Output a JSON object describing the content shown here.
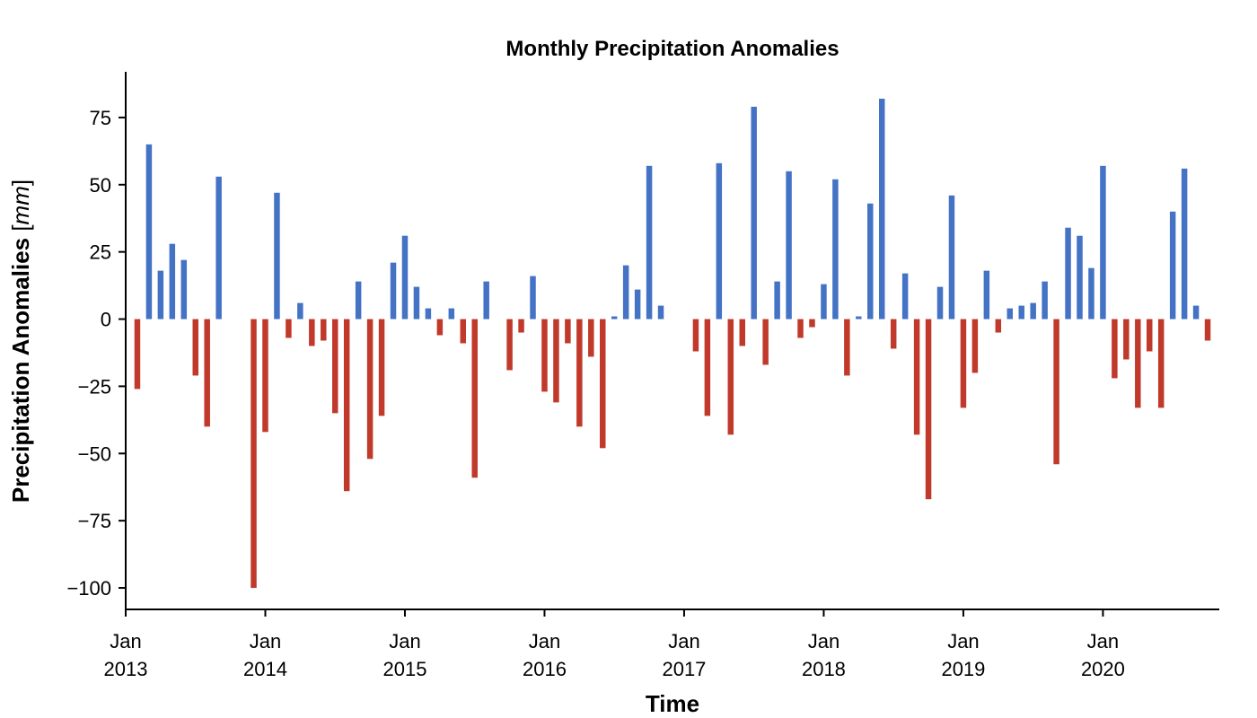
{
  "chart_data": {
    "type": "bar",
    "title": "Monthly Precipitation Anomalies",
    "xlabel": "Time",
    "ylabel": "Precipitation Anomalies [mm]",
    "ylabel_parts": {
      "text": "Precipitation Anomalies ",
      "open": "[",
      "unit": "mm",
      "close": "]"
    },
    "ylim": [
      -108,
      92
    ],
    "yticks": [
      75,
      50,
      25,
      0,
      -25,
      -50,
      -75,
      -100
    ],
    "ytick_labels": [
      "75",
      "50",
      "25",
      "0",
      "−25",
      "−50",
      "−75",
      "−100"
    ],
    "xticks": [
      {
        "date": "2013-01",
        "line1": "Jan",
        "line2": "2013"
      },
      {
        "date": "2014-01",
        "line1": "Jan",
        "line2": "2014"
      },
      {
        "date": "2015-01",
        "line1": "Jan",
        "line2": "2015"
      },
      {
        "date": "2016-01",
        "line1": "Jan",
        "line2": "2016"
      },
      {
        "date": "2017-01",
        "line1": "Jan",
        "line2": "2017"
      },
      {
        "date": "2018-01",
        "line1": "Jan",
        "line2": "2018"
      },
      {
        "date": "2019-01",
        "line1": "Jan",
        "line2": "2019"
      },
      {
        "date": "2020-01",
        "line1": "Jan",
        "line2": "2020"
      }
    ],
    "xlim": [
      "2013-01",
      "2020-11"
    ],
    "grid": false,
    "colors": {
      "positive": "#4472c4",
      "negative": "#c0392b"
    },
    "data": [
      {
        "x": "2013-02",
        "y": -26
      },
      {
        "x": "2013-03",
        "y": 65
      },
      {
        "x": "2013-04",
        "y": 18
      },
      {
        "x": "2013-05",
        "y": 28
      },
      {
        "x": "2013-06",
        "y": 22
      },
      {
        "x": "2013-07",
        "y": -21
      },
      {
        "x": "2013-08",
        "y": -40
      },
      {
        "x": "2013-09",
        "y": 53
      },
      {
        "x": "2013-12",
        "y": -100
      },
      {
        "x": "2014-01",
        "y": -42
      },
      {
        "x": "2014-02",
        "y": 47
      },
      {
        "x": "2014-03",
        "y": -7
      },
      {
        "x": "2014-04",
        "y": 6
      },
      {
        "x": "2014-05",
        "y": -10
      },
      {
        "x": "2014-06",
        "y": -8
      },
      {
        "x": "2014-07",
        "y": -35
      },
      {
        "x": "2014-08",
        "y": -64
      },
      {
        "x": "2014-09",
        "y": 14
      },
      {
        "x": "2014-10",
        "y": -52
      },
      {
        "x": "2014-11",
        "y": -36
      },
      {
        "x": "2014-12",
        "y": 21
      },
      {
        "x": "2015-01",
        "y": 31
      },
      {
        "x": "2015-02",
        "y": 12
      },
      {
        "x": "2015-03",
        "y": 4
      },
      {
        "x": "2015-04",
        "y": -6
      },
      {
        "x": "2015-05",
        "y": 4
      },
      {
        "x": "2015-06",
        "y": -9
      },
      {
        "x": "2015-07",
        "y": -59
      },
      {
        "x": "2015-08",
        "y": 14
      },
      {
        "x": "2015-10",
        "y": -19
      },
      {
        "x": "2015-11",
        "y": -5
      },
      {
        "x": "2015-12",
        "y": 16
      },
      {
        "x": "2016-01",
        "y": -27
      },
      {
        "x": "2016-02",
        "y": -31
      },
      {
        "x": "2016-03",
        "y": -9
      },
      {
        "x": "2016-04",
        "y": -40
      },
      {
        "x": "2016-05",
        "y": -14
      },
      {
        "x": "2016-06",
        "y": -48
      },
      {
        "x": "2016-07",
        "y": 1
      },
      {
        "x": "2016-08",
        "y": 20
      },
      {
        "x": "2016-09",
        "y": 11
      },
      {
        "x": "2016-10",
        "y": 57
      },
      {
        "x": "2016-11",
        "y": 5
      },
      {
        "x": "2017-02",
        "y": -12
      },
      {
        "x": "2017-03",
        "y": -36
      },
      {
        "x": "2017-04",
        "y": 58
      },
      {
        "x": "2017-05",
        "y": -43
      },
      {
        "x": "2017-06",
        "y": -10
      },
      {
        "x": "2017-07",
        "y": 79
      },
      {
        "x": "2017-08",
        "y": -17
      },
      {
        "x": "2017-09",
        "y": 14
      },
      {
        "x": "2017-10",
        "y": 55
      },
      {
        "x": "2017-11",
        "y": -7
      },
      {
        "x": "2017-12",
        "y": -3
      },
      {
        "x": "2018-01",
        "y": 13
      },
      {
        "x": "2018-02",
        "y": 52
      },
      {
        "x": "2018-03",
        "y": -21
      },
      {
        "x": "2018-04",
        "y": 1
      },
      {
        "x": "2018-05",
        "y": 43
      },
      {
        "x": "2018-06",
        "y": 82
      },
      {
        "x": "2018-07",
        "y": -11
      },
      {
        "x": "2018-08",
        "y": 17
      },
      {
        "x": "2018-09",
        "y": -43
      },
      {
        "x": "2018-10",
        "y": -67
      },
      {
        "x": "2018-11",
        "y": 12
      },
      {
        "x": "2018-12",
        "y": 46
      },
      {
        "x": "2019-01",
        "y": -33
      },
      {
        "x": "2019-02",
        "y": -20
      },
      {
        "x": "2019-03",
        "y": 18
      },
      {
        "x": "2019-04",
        "y": -5
      },
      {
        "x": "2019-05",
        "y": 4
      },
      {
        "x": "2019-06",
        "y": 5
      },
      {
        "x": "2019-07",
        "y": 6
      },
      {
        "x": "2019-08",
        "y": 14
      },
      {
        "x": "2019-09",
        "y": -54
      },
      {
        "x": "2019-10",
        "y": 34
      },
      {
        "x": "2019-11",
        "y": 31
      },
      {
        "x": "2019-12",
        "y": 19
      },
      {
        "x": "2020-01",
        "y": 57
      },
      {
        "x": "2020-02",
        "y": -22
      },
      {
        "x": "2020-03",
        "y": -15
      },
      {
        "x": "2020-04",
        "y": -33
      },
      {
        "x": "2020-05",
        "y": -12
      },
      {
        "x": "2020-06",
        "y": -33
      },
      {
        "x": "2020-07",
        "y": 40
      },
      {
        "x": "2020-08",
        "y": 56
      },
      {
        "x": "2020-09",
        "y": 5
      },
      {
        "x": "2020-10",
        "y": -8
      }
    ]
  }
}
